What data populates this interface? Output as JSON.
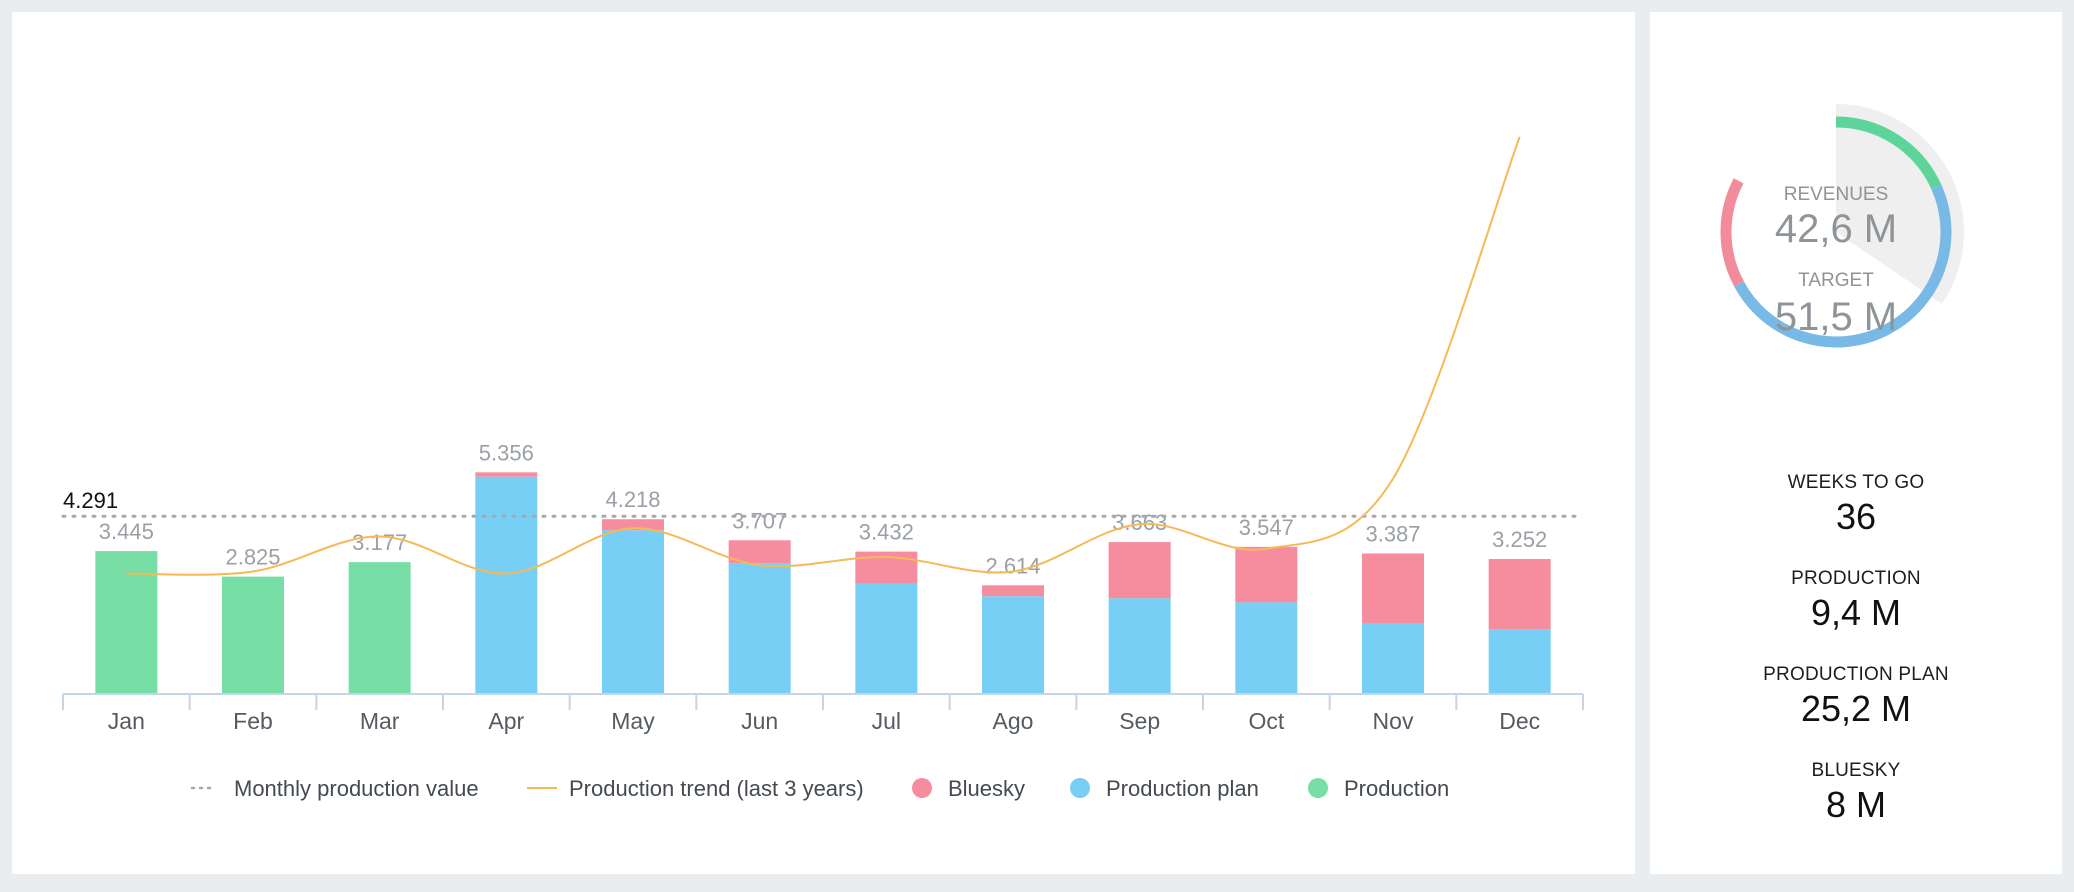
{
  "chart_data": {
    "type": "bar",
    "stacked": true,
    "categories": [
      "Jan",
      "Feb",
      "Mar",
      "Apr",
      "May",
      "Jun",
      "Jul",
      "Ago",
      "Sep",
      "Oct",
      "Nov",
      "Dec"
    ],
    "totals_labels": [
      "3.445",
      "2.825",
      "3.177",
      "5.356",
      "4.218",
      "3.707",
      "3.432",
      "2.614",
      "3.663",
      "3.547",
      "3.387",
      "3.252"
    ],
    "series": [
      {
        "name": "Production",
        "color": "#77dfa6",
        "values": [
          3.445,
          2.825,
          3.177,
          0,
          0,
          0,
          0,
          0,
          0,
          0,
          0,
          0
        ]
      },
      {
        "name": "Production plan",
        "color": "#78cff5",
        "values": [
          0,
          0,
          0,
          5.25,
          3.95,
          3.15,
          2.65,
          2.35,
          2.3,
          2.2,
          1.7,
          1.55
        ]
      },
      {
        "name": "Bluesky",
        "color": "#f58d9f",
        "values": [
          0,
          0,
          0,
          0.106,
          0.268,
          0.557,
          0.782,
          0.264,
          1.363,
          1.347,
          1.687,
          1.702
        ]
      }
    ],
    "reference_line": {
      "name": "Monthly production value",
      "value": 4.291,
      "label": "4.291",
      "style": "dotted",
      "color": "#a8a8a8"
    },
    "trend_line": {
      "name": "Production trend (last 3 years)",
      "color": "#f6b956",
      "values": [
        2.9,
        2.95,
        3.8,
        2.9,
        4.0,
        3.1,
        3.3,
        2.95,
        4.1,
        3.5,
        5.2,
        13.5
      ]
    },
    "ylim": [
      0,
      14
    ],
    "grid": false,
    "legend_position": "bottom",
    "legend": [
      {
        "label": "Monthly production value",
        "kind": "dots",
        "color": "#a8a8a8"
      },
      {
        "label": "Production trend (last 3 years)",
        "kind": "line",
        "color": "#f6b956"
      },
      {
        "label": "Bluesky",
        "kind": "circle",
        "color": "#f58d9f"
      },
      {
        "label": "Production plan",
        "kind": "circle",
        "color": "#78cff5"
      },
      {
        "label": "Production",
        "kind": "circle",
        "color": "#77dfa6"
      }
    ]
  },
  "gauge": {
    "revenues_label": "REVENUES",
    "revenues_value": "42,6 M",
    "target_label": "TARGET",
    "target_value": "51,5 M",
    "segments": [
      {
        "name": "Production",
        "color": "#5dd59a",
        "fraction": 0.183
      },
      {
        "name": "Production plan",
        "color": "#78b9e6",
        "fraction": 0.489
      },
      {
        "name": "Bluesky",
        "color": "#f28b9a",
        "fraction": 0.155
      }
    ],
    "progress_fraction": 0.827,
    "track_color": "#efefef"
  },
  "stats": [
    {
      "label": "WEEKS TO GO",
      "value": "36"
    },
    {
      "label": "PRODUCTION",
      "value": "9,4 M"
    },
    {
      "label": "PRODUCTION PLAN",
      "value": "25,2 M"
    },
    {
      "label": "BLUESKY",
      "value": "8 M"
    }
  ]
}
